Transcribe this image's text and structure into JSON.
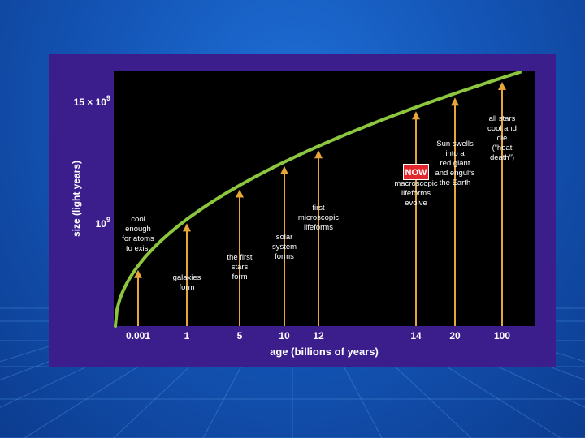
{
  "colors": {
    "slide_background": "#1456b8",
    "panel": "#3b1e8c",
    "plot_background": "#000000",
    "curve": "#8cc63f",
    "arrow": "#e8a53a",
    "now_badge": "#e0282d"
  },
  "chart_data": {
    "type": "line",
    "title": "",
    "xlabel": "age (billions of years)",
    "ylabel": "size (light years)",
    "x_ticks": [
      "0.001",
      "1",
      "5",
      "10",
      "12",
      "14",
      "20",
      "100"
    ],
    "y_ticks": [
      {
        "base": "15 × 10",
        "exp": "9",
        "value": 15000000000
      },
      {
        "base": "10",
        "exp": "9",
        "value": 1000000000
      }
    ],
    "curve_label": "",
    "grid": false,
    "events": [
      {
        "age": "0.001",
        "label": [
          "cool",
          "enough",
          "for atoms",
          "to exist"
        ]
      },
      {
        "age": "1",
        "label": [
          "galaxies",
          "form"
        ]
      },
      {
        "age": "5",
        "label": [
          "the first",
          "stars",
          "form"
        ]
      },
      {
        "age": "10",
        "label": [
          "solar",
          "system",
          "forms"
        ]
      },
      {
        "age": "12",
        "label": [
          "first",
          "microscopic",
          "lifeforms"
        ]
      },
      {
        "age": "14",
        "label": [
          "macroscopic",
          "lifeforms",
          "evolve"
        ],
        "badge": "NOW"
      },
      {
        "age": "20",
        "label": [
          "Sun swells",
          "into a",
          "red giant",
          "and engulfs",
          "the Earth"
        ]
      },
      {
        "age": "100",
        "label": [
          "all stars",
          "cool and",
          "die",
          "",
          "(“heat",
          "death”)"
        ]
      }
    ]
  }
}
